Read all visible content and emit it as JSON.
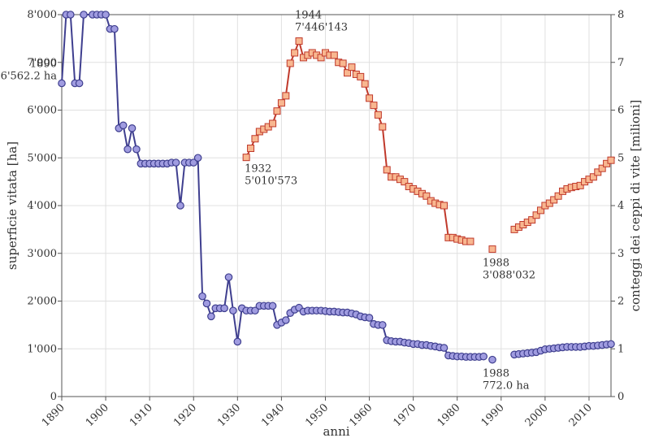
{
  "chart_data": {
    "type": "line",
    "xlabel": "anni",
    "ylabel": "superficie vitata [ha]",
    "y2label": "conteggi dei ceppi di vite [milioni]",
    "xlim": [
      1890,
      2015
    ],
    "ylim": [
      0,
      8000
    ],
    "y2lim": [
      0,
      8
    ],
    "grid": true,
    "x_ticks": [
      {
        "v": 1890,
        "label": "1890"
      },
      {
        "v": 1900,
        "label": "1900"
      },
      {
        "v": 1910,
        "label": "1910"
      },
      {
        "v": 1920,
        "label": "1920"
      },
      {
        "v": 1930,
        "label": "1930"
      },
      {
        "v": 1940,
        "label": "1940"
      },
      {
        "v": 1950,
        "label": "1950"
      },
      {
        "v": 1960,
        "label": "1960"
      },
      {
        "v": 1970,
        "label": "1970"
      },
      {
        "v": 1980,
        "label": "1980"
      },
      {
        "v": 1990,
        "label": "1990"
      },
      {
        "v": 2000,
        "label": "2000"
      },
      {
        "v": 2010,
        "label": "2010"
      }
    ],
    "y_ticks": [
      {
        "v": 0,
        "label": "0"
      },
      {
        "v": 1000,
        "label": "1'000"
      },
      {
        "v": 2000,
        "label": "2'000"
      },
      {
        "v": 3000,
        "label": "3'000"
      },
      {
        "v": 4000,
        "label": "4'000"
      },
      {
        "v": 5000,
        "label": "5'000"
      },
      {
        "v": 6000,
        "label": "6'000"
      },
      {
        "v": 7000,
        "label": "7'000"
      },
      {
        "v": 8000,
        "label": "8'000"
      }
    ],
    "y2_ticks": [
      {
        "v": 0,
        "label": "0"
      },
      {
        "v": 1,
        "label": "1"
      },
      {
        "v": 2,
        "label": "2"
      },
      {
        "v": 3,
        "label": "3"
      },
      {
        "v": 4,
        "label": "4"
      },
      {
        "v": 5,
        "label": "5"
      },
      {
        "v": 6,
        "label": "6"
      },
      {
        "v": 7,
        "label": "7"
      },
      {
        "v": 8,
        "label": "8"
      }
    ],
    "colors": {
      "area_line": "#3f3f8f",
      "area_marker": "#a09ce0",
      "vines_line": "#c0392b",
      "vines_marker": "#f8b790",
      "grid": "#e0e0e0",
      "axis": "#555555"
    },
    "series": [
      {
        "axis": "left",
        "marker": "circle",
        "segments": [
          [
            [
              1890,
              6562
            ],
            [
              1891,
              8000
            ],
            [
              1892,
              8000
            ],
            [
              1893,
              6562
            ],
            [
              1894,
              6562
            ],
            [
              1895,
              8000
            ],
            [
              1897,
              8000
            ],
            [
              1898,
              8000
            ],
            [
              1899,
              8000
            ],
            [
              1900,
              8000
            ],
            [
              1901,
              7700
            ],
            [
              1902,
              7700
            ],
            [
              1903,
              5620
            ],
            [
              1904,
              5680
            ],
            [
              1905,
              5180
            ],
            [
              1906,
              5620
            ],
            [
              1907,
              5180
            ],
            [
              1908,
              4880
            ],
            [
              1909,
              4880
            ],
            [
              1910,
              4880
            ],
            [
              1911,
              4880
            ],
            [
              1912,
              4880
            ],
            [
              1913,
              4880
            ],
            [
              1914,
              4880
            ],
            [
              1915,
              4900
            ],
            [
              1916,
              4900
            ],
            [
              1917,
              4000
            ],
            [
              1918,
              4900
            ],
            [
              1919,
              4900
            ],
            [
              1920,
              4900
            ],
            [
              1921,
              5000
            ],
            [
              1922,
              2100
            ],
            [
              1923,
              1950
            ],
            [
              1924,
              1680
            ],
            [
              1925,
              1850
            ],
            [
              1926,
              1850
            ],
            [
              1927,
              1850
            ],
            [
              1928,
              2500
            ],
            [
              1929,
              1800
            ],
            [
              1930,
              1150
            ],
            [
              1931,
              1850
            ],
            [
              1932,
              1800
            ],
            [
              1933,
              1800
            ],
            [
              1934,
              1800
            ],
            [
              1935,
              1900
            ],
            [
              1936,
              1900
            ],
            [
              1937,
              1900
            ],
            [
              1938,
              1900
            ],
            [
              1939,
              1500
            ],
            [
              1940,
              1550
            ],
            [
              1941,
              1600
            ],
            [
              1942,
              1750
            ],
            [
              1943,
              1820
            ],
            [
              1944,
              1860
            ],
            [
              1945,
              1780
            ],
            [
              1946,
              1800
            ],
            [
              1947,
              1800
            ],
            [
              1948,
              1800
            ],
            [
              1949,
              1800
            ],
            [
              1950,
              1790
            ],
            [
              1951,
              1780
            ],
            [
              1952,
              1780
            ],
            [
              1953,
              1770
            ],
            [
              1954,
              1760
            ],
            [
              1955,
              1760
            ],
            [
              1956,
              1740
            ],
            [
              1957,
              1720
            ],
            [
              1958,
              1680
            ],
            [
              1959,
              1660
            ],
            [
              1960,
              1650
            ],
            [
              1961,
              1520
            ],
            [
              1962,
              1500
            ],
            [
              1963,
              1500
            ],
            [
              1964,
              1180
            ],
            [
              1965,
              1160
            ],
            [
              1966,
              1150
            ],
            [
              1967,
              1150
            ],
            [
              1968,
              1130
            ],
            [
              1969,
              1120
            ],
            [
              1970,
              1100
            ],
            [
              1971,
              1100
            ],
            [
              1972,
              1080
            ],
            [
              1973,
              1080
            ],
            [
              1974,
              1060
            ],
            [
              1975,
              1050
            ],
            [
              1976,
              1030
            ],
            [
              1977,
              1020
            ],
            [
              1978,
              860
            ],
            [
              1979,
              850
            ],
            [
              1980,
              840
            ],
            [
              1981,
              840
            ],
            [
              1982,
              830
            ],
            [
              1983,
              830
            ],
            [
              1984,
              830
            ],
            [
              1985,
              830
            ],
            [
              1986,
              840
            ]
          ],
          [
            [
              1988,
              772
            ]
          ],
          [
            [
              1993,
              880
            ],
            [
              1994,
              890
            ],
            [
              1995,
              900
            ],
            [
              1996,
              910
            ],
            [
              1997,
              920
            ],
            [
              1998,
              930
            ],
            [
              1999,
              960
            ],
            [
              2000,
              990
            ],
            [
              2001,
              1000
            ],
            [
              2002,
              1010
            ],
            [
              2003,
              1020
            ],
            [
              2004,
              1030
            ],
            [
              2005,
              1040
            ],
            [
              2006,
              1040
            ],
            [
              2007,
              1040
            ],
            [
              2008,
              1040
            ],
            [
              2009,
              1050
            ],
            [
              2010,
              1060
            ],
            [
              2011,
              1060
            ],
            [
              2012,
              1070
            ],
            [
              2013,
              1080
            ],
            [
              2014,
              1090
            ],
            [
              2015,
              1100
            ]
          ]
        ]
      },
      {
        "axis": "right",
        "marker": "square",
        "segments": [
          [
            [
              1932,
              5.01
            ],
            [
              1933,
              5.2
            ],
            [
              1934,
              5.4
            ],
            [
              1935,
              5.55
            ],
            [
              1936,
              5.6
            ],
            [
              1937,
              5.65
            ],
            [
              1938,
              5.72
            ],
            [
              1939,
              5.98
            ],
            [
              1940,
              6.15
            ],
            [
              1941,
              6.3
            ],
            [
              1942,
              6.98
            ],
            [
              1943,
              7.2
            ],
            [
              1944,
              7.446
            ],
            [
              1945,
              7.1
            ],
            [
              1946,
              7.15
            ],
            [
              1947,
              7.2
            ],
            [
              1948,
              7.15
            ],
            [
              1949,
              7.1
            ],
            [
              1950,
              7.2
            ],
            [
              1951,
              7.15
            ],
            [
              1952,
              7.15
            ],
            [
              1953,
              7.0
            ],
            [
              1954,
              6.98
            ],
            [
              1955,
              6.78
            ],
            [
              1956,
              6.9
            ],
            [
              1957,
              6.75
            ],
            [
              1958,
              6.7
            ],
            [
              1959,
              6.55
            ],
            [
              1960,
              6.25
            ],
            [
              1961,
              6.1
            ],
            [
              1962,
              5.9
            ],
            [
              1963,
              5.65
            ],
            [
              1964,
              4.75
            ],
            [
              1965,
              4.6
            ],
            [
              1966,
              4.6
            ],
            [
              1967,
              4.55
            ],
            [
              1968,
              4.5
            ],
            [
              1969,
              4.4
            ],
            [
              1970,
              4.35
            ],
            [
              1971,
              4.3
            ],
            [
              1972,
              4.25
            ],
            [
              1973,
              4.2
            ],
            [
              1974,
              4.1
            ],
            [
              1975,
              4.05
            ],
            [
              1976,
              4.02
            ],
            [
              1977,
              4.0
            ],
            [
              1978,
              3.33
            ],
            [
              1979,
              3.33
            ],
            [
              1980,
              3.3
            ],
            [
              1981,
              3.28
            ],
            [
              1982,
              3.25
            ],
            [
              1983,
              3.25
            ]
          ],
          [
            [
              1988,
              3.088
            ]
          ],
          [
            [
              1993,
              3.5
            ],
            [
              1994,
              3.55
            ],
            [
              1995,
              3.6
            ],
            [
              1996,
              3.65
            ],
            [
              1997,
              3.7
            ],
            [
              1998,
              3.8
            ],
            [
              1999,
              3.9
            ],
            [
              2000,
              4.0
            ],
            [
              2001,
              4.05
            ],
            [
              2002,
              4.12
            ],
            [
              2003,
              4.2
            ],
            [
              2004,
              4.3
            ],
            [
              2005,
              4.35
            ],
            [
              2006,
              4.38
            ],
            [
              2007,
              4.4
            ],
            [
              2008,
              4.42
            ],
            [
              2009,
              4.5
            ],
            [
              2010,
              4.55
            ],
            [
              2011,
              4.6
            ],
            [
              2012,
              4.7
            ],
            [
              2013,
              4.78
            ],
            [
              2014,
              4.88
            ],
            [
              2015,
              4.95
            ]
          ]
        ]
      }
    ],
    "annotations": [
      {
        "axis": "left",
        "x": 1890,
        "y": 6562,
        "lines": [
          "1890",
          "6'562.2 ha"
        ],
        "anchor": "end",
        "dx": -6,
        "dy": -20
      },
      {
        "axis": "right",
        "x": 1932,
        "y": 5.01,
        "lines": [
          "1932",
          "5'010'573"
        ],
        "anchor": "start",
        "dx": -2,
        "dy": 18
      },
      {
        "axis": "right",
        "x": 1944,
        "y": 7.446,
        "lines": [
          "1944",
          "7'446'143"
        ],
        "anchor": "start",
        "dx": -5,
        "dy": -28
      },
      {
        "axis": "right",
        "x": 1988,
        "y": 3.088,
        "lines": [
          "1988",
          "3'088'032"
        ],
        "anchor": "start",
        "dx": -12,
        "dy": 21
      },
      {
        "axis": "left",
        "x": 1988,
        "y": 772,
        "lines": [
          "1988",
          "772.0 ha"
        ],
        "anchor": "start",
        "dx": -12,
        "dy": 21
      }
    ]
  }
}
